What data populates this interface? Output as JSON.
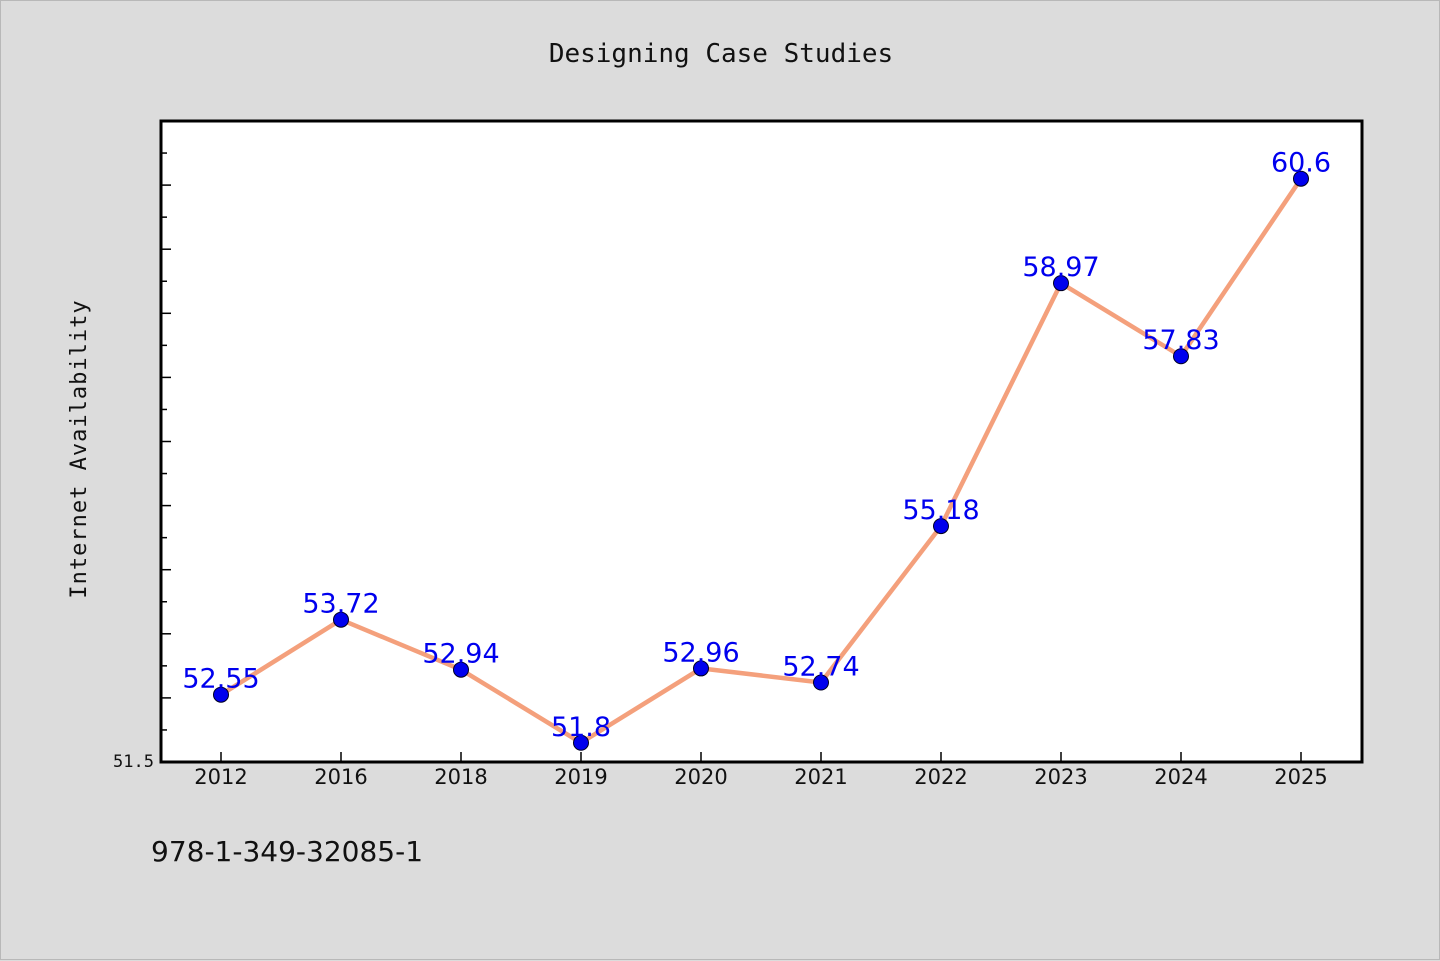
{
  "footer": {
    "code": "978-1-349-32085-1"
  },
  "chart_data": {
    "type": "line",
    "title": "Designing Case Studies",
    "xlabel": "",
    "ylabel": "Internet Availability",
    "categories": [
      "2012",
      "2016",
      "2018",
      "2019",
      "2020",
      "2021",
      "2022",
      "2023",
      "2024",
      "2025"
    ],
    "series": [
      {
        "values": [
          52.55,
          53.72,
          52.94,
          51.8,
          52.96,
          52.74,
          55.18,
          58.97,
          57.83,
          60.6
        ]
      }
    ],
    "data_labels": [
      "52.55",
      "53.72",
      "52.94",
      "51.8",
      "52.96",
      "52.74",
      "55.18",
      "58.97",
      "57.83",
      "60.6"
    ],
    "ylim": [
      51.5,
      61.5
    ],
    "y_tick_labels": [
      "51.5"
    ],
    "grid": false,
    "colors": {
      "line": "#f4a07c",
      "marker": "#0000ee",
      "label": "#0000ee",
      "frame": "#000000",
      "plot_bg": "#ffffff"
    }
  }
}
